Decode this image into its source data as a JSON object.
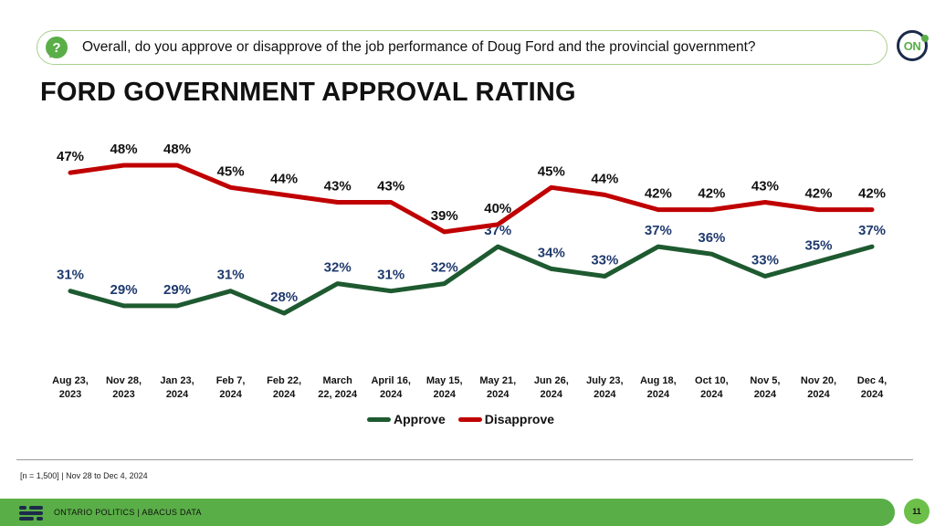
{
  "header": {
    "question": "Overall, do you approve or disapprove of the job performance of Doug Ford and the provincial government?",
    "question_icon": "question-bubble-icon",
    "logo_text": "ON"
  },
  "page_title": "FORD GOVERNMENT APPROVAL RATING",
  "chart_data": {
    "type": "line",
    "categories": [
      [
        "Aug 23,",
        "2023"
      ],
      [
        "Nov 28,",
        "2023"
      ],
      [
        "Jan 23,",
        "2024"
      ],
      [
        "Feb 7,",
        "2024"
      ],
      [
        "Feb 22,",
        "2024"
      ],
      [
        "March",
        "22, 2024"
      ],
      [
        "April 16,",
        "2024"
      ],
      [
        "May 15,",
        "2024"
      ],
      [
        "May 21,",
        "2024"
      ],
      [
        "Jun 26,",
        "2024"
      ],
      [
        "July 23,",
        "2024"
      ],
      [
        "Aug 18,",
        "2024"
      ],
      [
        "Oct 10,",
        "2024"
      ],
      [
        "Nov 5,",
        "2024"
      ],
      [
        "Nov 20,",
        "2024"
      ],
      [
        "Dec 4,",
        "2024"
      ]
    ],
    "series": [
      {
        "name": "Approve",
        "color": "#1e5a30",
        "label_color": "#1f3a6e",
        "values": [
          31,
          29,
          29,
          31,
          28,
          32,
          31,
          32,
          37,
          34,
          33,
          37,
          36,
          33,
          35,
          37
        ],
        "labels": [
          "31%",
          "29%",
          "29%",
          "31%",
          "28%",
          "32%",
          "31%",
          "32%",
          "37%",
          "34%",
          "33%",
          "37%",
          "36%",
          "33%",
          "35%",
          "37%"
        ]
      },
      {
        "name": "Disapprove",
        "color": "#c00000",
        "label_color": "#111111",
        "values": [
          47,
          48,
          48,
          45,
          44,
          43,
          43,
          39,
          40,
          45,
          44,
          42,
          42,
          43,
          42,
          42
        ],
        "labels": [
          "47%",
          "48%",
          "48%",
          "45%",
          "44%",
          "43%",
          "43%",
          "39%",
          "40%",
          "45%",
          "44%",
          "42%",
          "42%",
          "43%",
          "42%",
          "42%"
        ]
      }
    ],
    "ylim": [
      20,
      50
    ],
    "grid": false,
    "legend_position": "bottom"
  },
  "footnote": "[n = 1,500] | Nov 28 to Dec 4, 2024",
  "footer": {
    "text": "ONTARIO POLITICS  |  ABACUS DATA",
    "page_number": "11"
  }
}
